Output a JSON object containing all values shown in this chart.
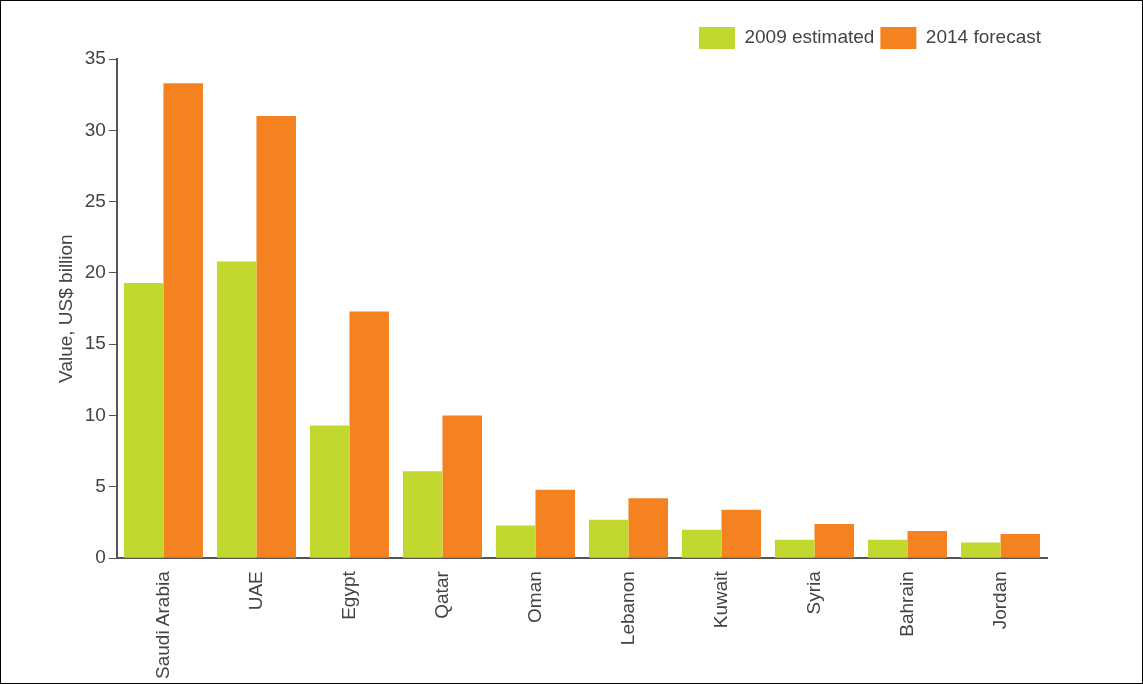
{
  "chart_data": {
    "type": "bar",
    "ylabel": "Value, US$ billion",
    "categories": [
      "Saudi Arabia",
      "UAE",
      "Egypt",
      "Qatar",
      "Oman",
      "Lebanon",
      "Kuwait",
      "Syria",
      "Bahrain",
      "Jordan"
    ],
    "series": [
      {
        "name": "2009 estimated",
        "color": "#c3d82e",
        "values": [
          19.3,
          20.8,
          9.3,
          6.1,
          2.3,
          2.7,
          2.0,
          1.3,
          1.3,
          1.1
        ]
      },
      {
        "name": "2014 forecast",
        "color": "#f58220",
        "values": [
          33.3,
          31.0,
          17.3,
          10.0,
          4.8,
          4.2,
          3.4,
          2.4,
          1.9,
          1.7
        ]
      }
    ],
    "ylim": [
      0,
      35
    ],
    "yticks": [
      0,
      5,
      10,
      15,
      20,
      25,
      30,
      35
    ],
    "grid": false,
    "legend": "top right"
  }
}
